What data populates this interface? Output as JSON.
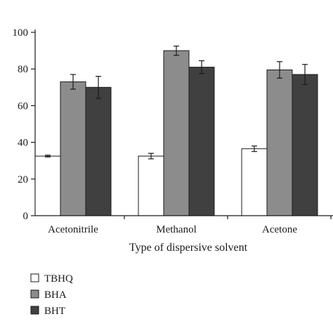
{
  "chart_data": {
    "type": "bar",
    "title": "",
    "xlabel": "Type of dispersive solvent",
    "ylabel": "",
    "ylim": [
      0,
      100
    ],
    "yticks": [
      0,
      20,
      40,
      60,
      80,
      100
    ],
    "categories": [
      "Acetonitrile",
      "Methanol",
      "Acetone"
    ],
    "series": [
      {
        "name": "TBHQ",
        "color": "#ffffff",
        "values": [
          32.5,
          32.5,
          36.5
        ],
        "errors": [
          0.5,
          1.5,
          1.5
        ]
      },
      {
        "name": "BHA",
        "color": "#8c8c8c",
        "values": [
          73,
          90,
          79.5
        ],
        "errors": [
          4,
          2.5,
          4.5
        ]
      },
      {
        "name": "BHT",
        "color": "#404040",
        "values": [
          70,
          81,
          77
        ],
        "errors": [
          6,
          3.5,
          5.5
        ]
      }
    ],
    "legend_position": "bottom-left",
    "grid": false
  }
}
